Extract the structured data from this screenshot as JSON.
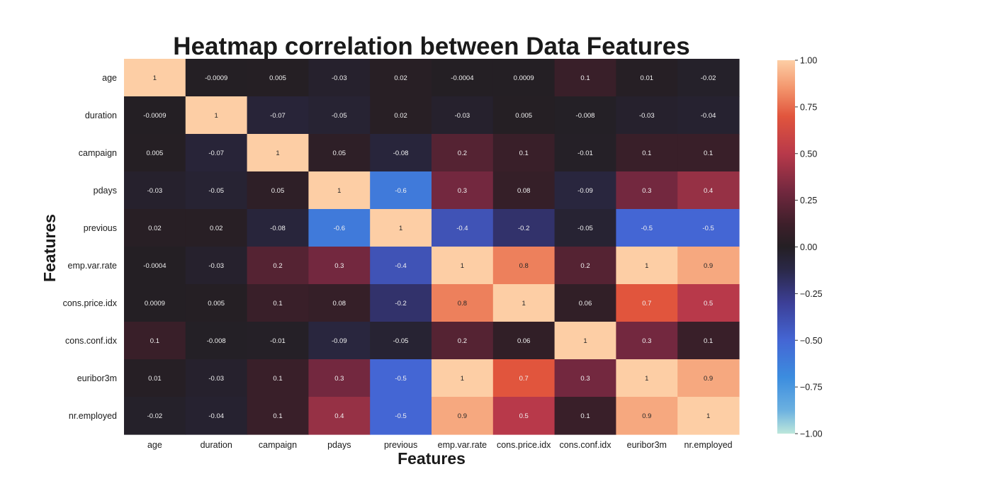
{
  "chart_data": {
    "type": "heatmap",
    "title": "Heatmap correlation between Data Features",
    "xlabel": "Features",
    "ylabel": "Features",
    "rows": [
      "age",
      "duration",
      "campaign",
      "pdays",
      "previous",
      "emp.var.rate",
      "cons.price.idx",
      "cons.conf.idx",
      "euribor3m",
      "nr.employed"
    ],
    "columns": [
      "age",
      "duration",
      "campaign",
      "pdays",
      "previous",
      "emp.var.rate",
      "cons.price.idx",
      "cons.conf.idx",
      "euribor3m",
      "nr.employed"
    ],
    "values": [
      [
        1,
        -0.0009,
        0.005,
        -0.03,
        0.02,
        -0.0004,
        0.0009,
        0.1,
        0.01,
        -0.02
      ],
      [
        -0.0009,
        1,
        -0.07,
        -0.05,
        0.02,
        -0.03,
        0.005,
        -0.008,
        -0.03,
        -0.04
      ],
      [
        0.005,
        -0.07,
        1,
        0.05,
        -0.08,
        0.2,
        0.1,
        -0.01,
        0.1,
        0.1
      ],
      [
        -0.03,
        -0.05,
        0.05,
        1,
        -0.6,
        0.3,
        0.08,
        -0.09,
        0.3,
        0.4
      ],
      [
        0.02,
        0.02,
        -0.08,
        -0.6,
        1,
        -0.4,
        -0.2,
        -0.05,
        -0.5,
        -0.5
      ],
      [
        -0.0004,
        -0.03,
        0.2,
        0.3,
        -0.4,
        1,
        0.8,
        0.2,
        1,
        0.9
      ],
      [
        0.0009,
        0.005,
        0.1,
        0.08,
        -0.2,
        0.8,
        1,
        0.06,
        0.7,
        0.5
      ],
      [
        0.1,
        -0.008,
        -0.01,
        -0.09,
        -0.05,
        0.2,
        0.06,
        1,
        0.3,
        0.1
      ],
      [
        0.01,
        -0.03,
        0.1,
        0.3,
        -0.5,
        1,
        0.7,
        0.3,
        1,
        0.9
      ],
      [
        -0.02,
        -0.04,
        0.1,
        0.4,
        -0.5,
        0.9,
        0.5,
        0.1,
        0.9,
        1
      ]
    ],
    "value_labels": [
      [
        "1",
        "-0.0009",
        "0.005",
        "-0.03",
        "0.02",
        "-0.0004",
        "0.0009",
        "0.1",
        "0.01",
        "-0.02"
      ],
      [
        "-0.0009",
        "1",
        "-0.07",
        "-0.05",
        "0.02",
        "-0.03",
        "0.005",
        "-0.008",
        "-0.03",
        "-0.04"
      ],
      [
        "0.005",
        "-0.07",
        "1",
        "0.05",
        "-0.08",
        "0.2",
        "0.1",
        "-0.01",
        "0.1",
        "0.1"
      ],
      [
        "-0.03",
        "-0.05",
        "0.05",
        "1",
        "-0.6",
        "0.3",
        "0.08",
        "-0.09",
        "0.3",
        "0.4"
      ],
      [
        "0.02",
        "0.02",
        "-0.08",
        "-0.6",
        "1",
        "-0.4",
        "-0.2",
        "-0.05",
        "-0.5",
        "-0.5"
      ],
      [
        "-0.0004",
        "-0.03",
        "0.2",
        "0.3",
        "-0.4",
        "1",
        "0.8",
        "0.2",
        "1",
        "0.9"
      ],
      [
        "0.0009",
        "0.005",
        "0.1",
        "0.08",
        "-0.2",
        "0.8",
        "1",
        "0.06",
        "0.7",
        "0.5"
      ],
      [
        "0.1",
        "-0.008",
        "-0.01",
        "-0.09",
        "-0.05",
        "0.2",
        "0.06",
        "1",
        "0.3",
        "0.1"
      ],
      [
        "0.01",
        "-0.03",
        "0.1",
        "0.3",
        "-0.5",
        "1",
        "0.7",
        "0.3",
        "1",
        "0.9"
      ],
      [
        "-0.02",
        "-0.04",
        "0.1",
        "0.4",
        "-0.5",
        "0.9",
        "0.5",
        "0.1",
        "0.9",
        "1"
      ]
    ],
    "colorbar": {
      "vmin": -1,
      "vmax": 1,
      "ticks": [
        1.0,
        0.75,
        0.5,
        0.25,
        0.0,
        -0.25,
        -0.5,
        -0.75,
        -1.0
      ],
      "tick_labels": [
        "1.00",
        "0.75",
        "0.50",
        "0.25",
        "0.00",
        "−0.25",
        "−0.50",
        "−0.75",
        "−1.00"
      ],
      "placement": "right",
      "colormap": "icefire",
      "colormap_stops": [
        {
          "v": -1.0,
          "color": "#bde7db"
        },
        {
          "v": -0.875,
          "color": "#6cb1e0"
        },
        {
          "v": -0.7,
          "color": "#3c8ddf"
        },
        {
          "v": -0.5,
          "color": "#4466d4"
        },
        {
          "v": -0.3,
          "color": "#3c3f97"
        },
        {
          "v": -0.12,
          "color": "#2a2847"
        },
        {
          "v": 0.0,
          "color": "#241f24"
        },
        {
          "v": 0.12,
          "color": "#3d1f2a"
        },
        {
          "v": 0.3,
          "color": "#73283f"
        },
        {
          "v": 0.5,
          "color": "#b8394a"
        },
        {
          "v": 0.7,
          "color": "#e1553d"
        },
        {
          "v": 0.85,
          "color": "#f3956c"
        },
        {
          "v": 1.0,
          "color": "#fdcea5"
        }
      ]
    }
  }
}
